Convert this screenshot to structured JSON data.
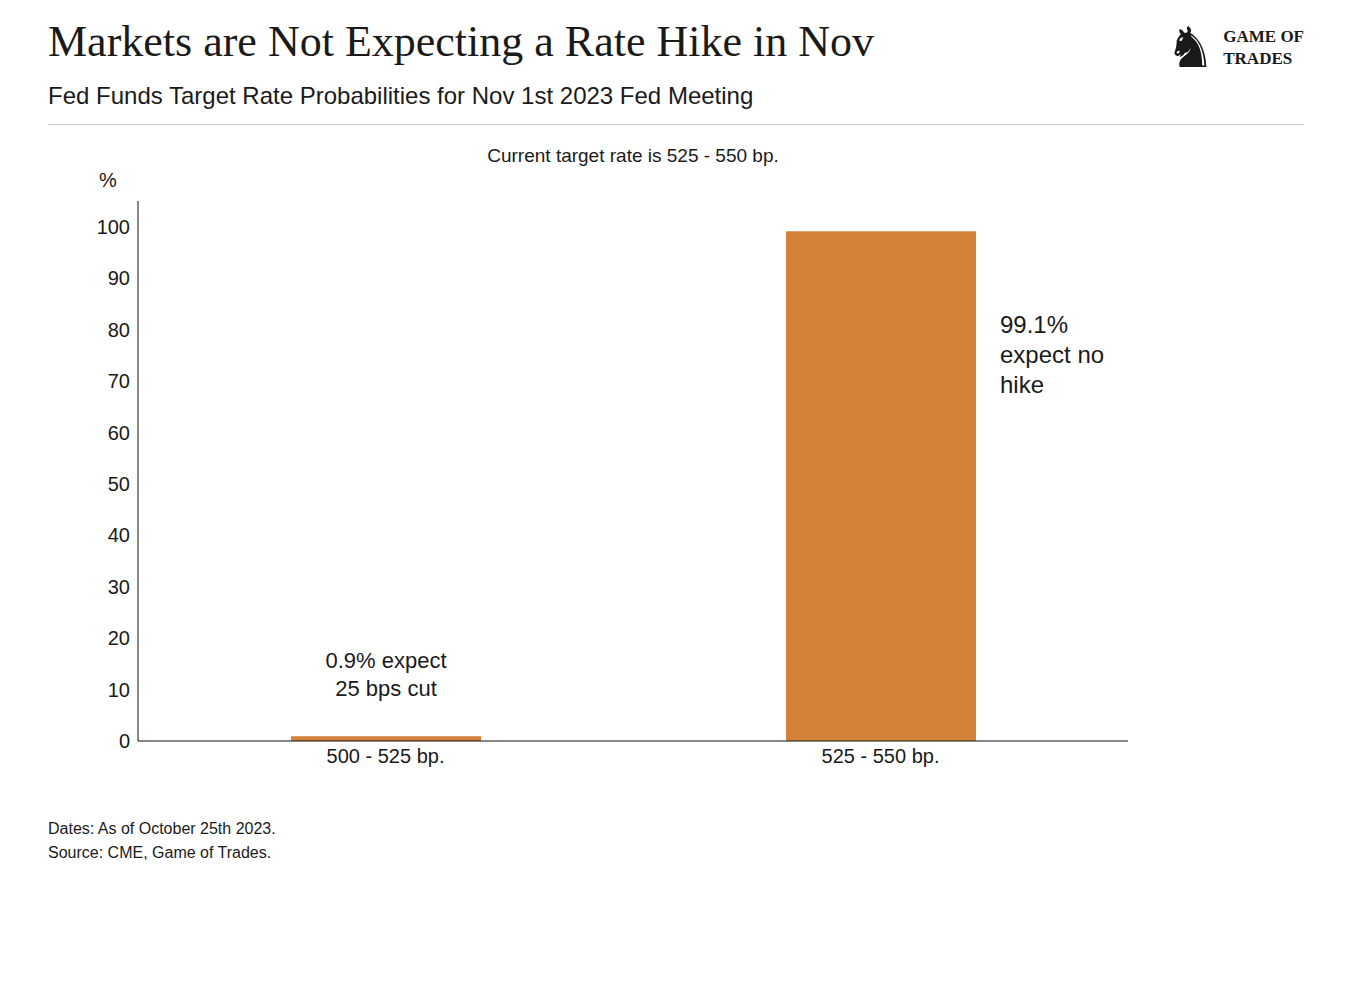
{
  "chart_data": {
    "type": "bar",
    "title": "Markets are Not Expecting a Rate Hike in Nov",
    "subtitle": "Fed Funds Target Rate Probabilities for Nov 1st 2023 Fed Meeting",
    "categories": [
      "500 - 525 bp.",
      "525 - 550 bp."
    ],
    "values": [
      0.9,
      99.1
    ],
    "color": "#D4813A",
    "ylim": [
      0,
      105
    ],
    "yticks": [
      0,
      10,
      20,
      30,
      40,
      50,
      60,
      70,
      80,
      90,
      100
    ],
    "ylabel": "%",
    "grid": false,
    "note": "Current target rate is 525 - 550 bp.",
    "annotations": [
      "0.9% expect\n25 bps cut",
      "99.1%\nexpect no\nhike"
    ],
    "footnotes": [
      "Dates: As of October 25th 2023.",
      "Source: CME, Game of Trades."
    ],
    "logo": [
      "♞",
      "GAME OF\nTRADES"
    ]
  }
}
